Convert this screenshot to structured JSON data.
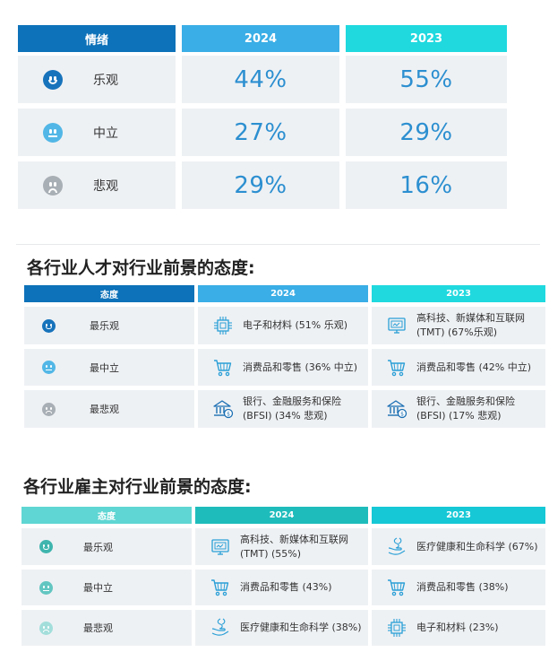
{
  "colors": {
    "dark_blue": "#0d72b9",
    "mid_blue": "#3aaee6",
    "cyan": "#1fd9df",
    "teal_light": "#5fd6d3",
    "teal_mid": "#1fbcbc",
    "cyan2": "#16c8d6",
    "face_optimistic": "#1773bb",
    "face_neutral": "#52b7e6",
    "face_pessimistic": "#a8afb5",
    "face_optimistic_2": "#3fb5ae",
    "face_neutral_2": "#63c6c1",
    "face_pessimistic_2": "#a3dedb",
    "percent_text": "#2c8fd0"
  },
  "table1": {
    "headers": [
      "情绪",
      "2024",
      "2023"
    ],
    "rows": [
      {
        "label": "乐观",
        "face": "happy",
        "v2024": "44%",
        "v2023": "55%"
      },
      {
        "label": "中立",
        "face": "neutral",
        "v2024": "27%",
        "v2023": "29%"
      },
      {
        "label": "悲观",
        "face": "sad",
        "v2024": "29%",
        "v2023": "16%"
      }
    ]
  },
  "section2": {
    "title": "各行业人才对行业前景的态度:",
    "headers": [
      "态度",
      "2024",
      "2023"
    ],
    "rows": [
      {
        "label": "最乐观",
        "face": "happy",
        "c2024": {
          "icon": "chip-icon",
          "text": "电子和材料 (51% 乐观)"
        },
        "c2023": {
          "icon": "monitor-tech-icon",
          "text": "高科技、新媒体和互联网 (TMT) (67%乐观)"
        }
      },
      {
        "label": "最中立",
        "face": "neutral",
        "c2024": {
          "icon": "cart-icon",
          "text": "消费品和零售 (36% 中立)"
        },
        "c2023": {
          "icon": "cart-icon",
          "text": "消费品和零售 (42% 中立)"
        }
      },
      {
        "label": "最悲观",
        "face": "sad",
        "c2024": {
          "icon": "bank-icon",
          "text": "银行、金融服务和保险 (BFSI) (34% 悲观)"
        },
        "c2023": {
          "icon": "bank-icon",
          "text": "银行、金融服务和保险 (BFSI) (17% 悲观)"
        }
      }
    ]
  },
  "section3": {
    "title": "各行业雇主对行业前景的态度:",
    "headers": [
      "态度",
      "2024",
      "2023"
    ],
    "rows": [
      {
        "label": "最乐观",
        "face": "happy",
        "c2024": {
          "icon": "monitor-tech-icon",
          "text": "高科技、新媒体和互联网 (TMT) (55%)"
        },
        "c2023": {
          "icon": "healthcare-hand-icon",
          "text": "医疗健康和生命科学 (67%)"
        }
      },
      {
        "label": "最中立",
        "face": "neutral",
        "c2024": {
          "icon": "cart-icon",
          "text": "消费品和零售 (43%)"
        },
        "c2023": {
          "icon": "cart-icon",
          "text": "消费品和零售 (38%)"
        }
      },
      {
        "label": "最悲观",
        "face": "sad",
        "c2024": {
          "icon": "healthcare-hand-icon",
          "text": "医疗健康和生命科学 (38%)"
        },
        "c2023": {
          "icon": "chip-icon",
          "text": "电子和材料 (23%)"
        }
      }
    ]
  }
}
